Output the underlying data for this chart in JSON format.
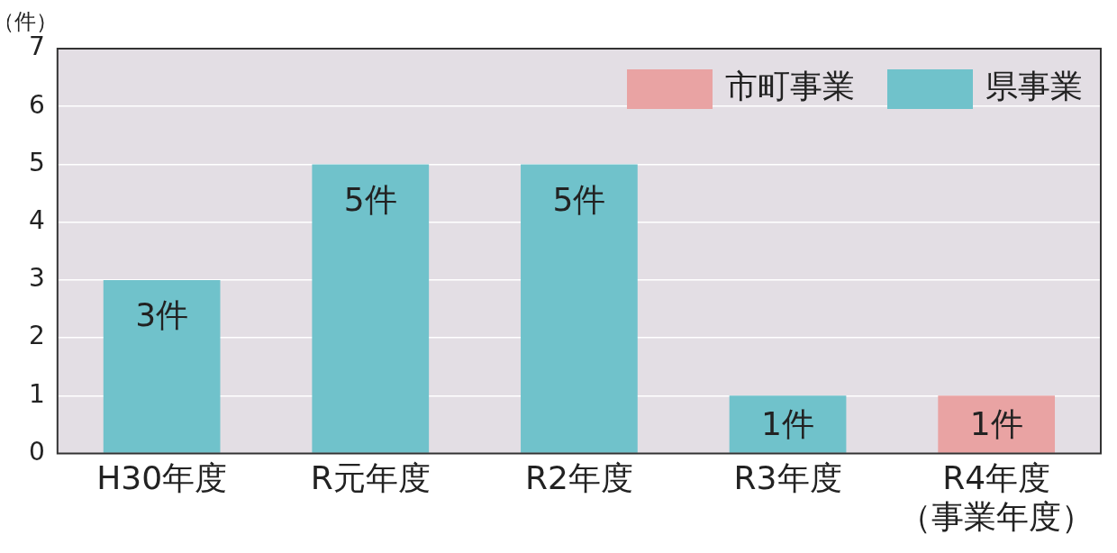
{
  "chart_data": {
    "type": "bar",
    "ylabel": "（件）",
    "categories": [
      "H30年度",
      "R元年度",
      "R2年度",
      "R3年度",
      "R4年度（事業年度）"
    ],
    "series": [
      {
        "name": "市町事業",
        "color": "#e9a3a3",
        "values": [
          null,
          null,
          null,
          null,
          1
        ],
        "value_labels": [
          null,
          null,
          null,
          null,
          "1件"
        ]
      },
      {
        "name": "県事業",
        "color": "#70c2cb",
        "values": [
          3,
          5,
          5,
          1,
          null
        ],
        "value_labels": [
          "3件",
          "5件",
          "5件",
          "1件",
          null
        ]
      }
    ],
    "stacked": true,
    "ylim": [
      0,
      7
    ],
    "yticks": [
      0,
      1,
      2,
      3,
      4,
      5,
      6,
      7
    ],
    "grid": "y",
    "legend": "top right"
  }
}
